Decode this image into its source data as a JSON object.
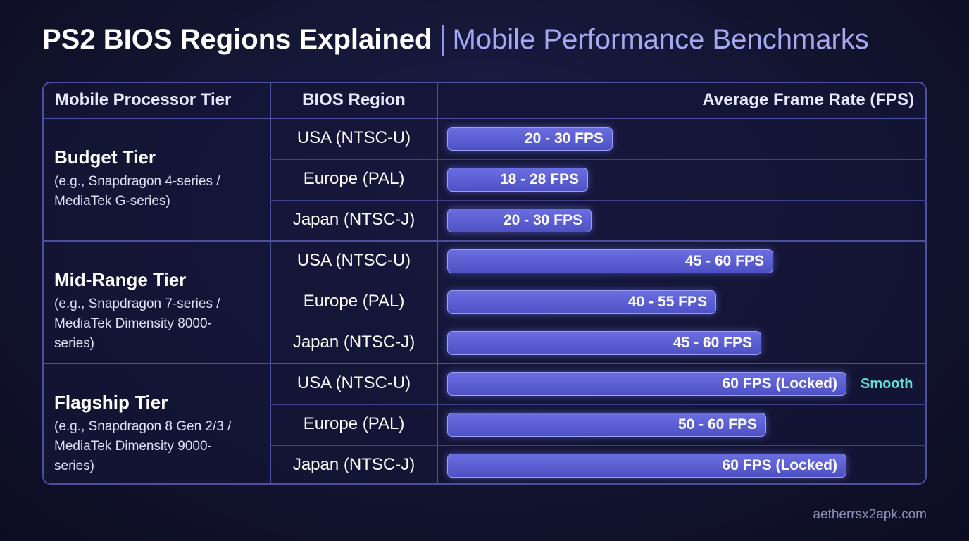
{
  "header": {
    "title": "PS2 BIOS Regions Explained",
    "subtitle": "Mobile Performance Benchmarks"
  },
  "table": {
    "columns": [
      "Mobile Processor Tier",
      "BIOS Region",
      "Average Frame Rate (FPS)"
    ],
    "tiers": [
      {
        "name": "Budget Tier",
        "description": "(e.g., Snapdragon 4-series / MediaTek G-series)",
        "rows": [
          [
            "USA (NTSC-U)",
            "20 - 30 FPS"
          ],
          [
            "Europe (PAL)",
            "18 - 28 FPS"
          ],
          [
            "Japan (NTSC-J)",
            "20 - 30 FPS"
          ]
        ]
      },
      {
        "name": "Mid-Range Tier",
        "description": "(e.g., Snapdragon 7-series / MediaTek Dimensity 8000-series)",
        "rows": [
          [
            "USA (NTSC-U)",
            "45 - 60 FPS"
          ],
          [
            "Europe (PAL)",
            "40 - 55 FPS"
          ],
          [
            "Japan (NTSC-J)",
            "45 - 60 FPS"
          ]
        ]
      },
      {
        "name": "Flagship Tier",
        "description": "(e.g., Snapdragon 8 Gen 2/3 / MediaTek Dimensity 9000-series)",
        "rows": [
          [
            "USA (NTSC-U)",
            "60 FPS (Locked)"
          ],
          [
            "Europe (PAL)",
            "50 - 60 FPS"
          ],
          [
            "Japan (NTSC-J)",
            "60 FPS (Locked)"
          ]
        ]
      }
    ],
    "annotation": "Smooth"
  },
  "footer": {
    "url": "aetherrsx2apk.com"
  }
}
